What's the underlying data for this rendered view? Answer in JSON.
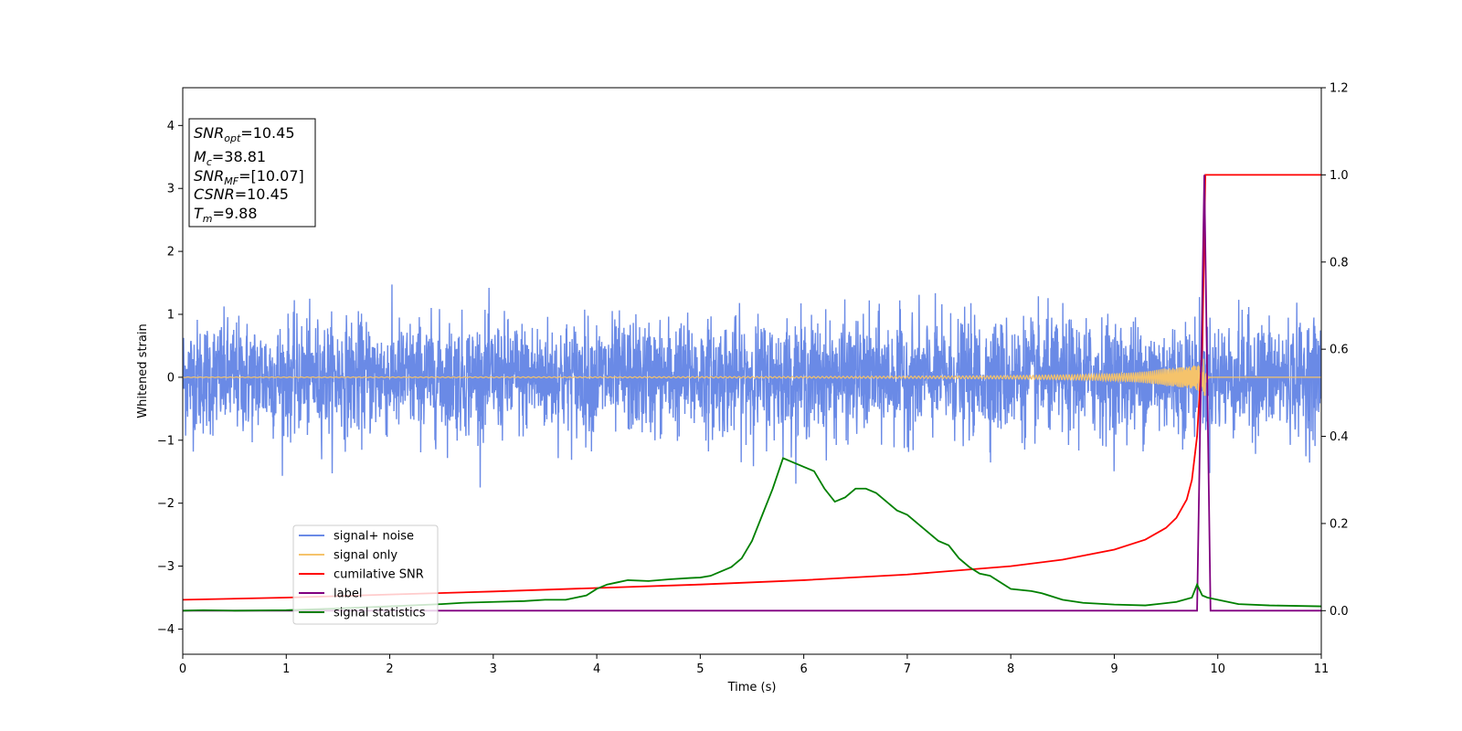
{
  "chart_data": {
    "type": "line",
    "title": "",
    "xlabel": "Time (s)",
    "ylabel": "Whitened strain",
    "y2label": "",
    "xlim": [
      0,
      11
    ],
    "ylim": [
      -4.4,
      4.6
    ],
    "y2lim": [
      -0.1,
      1.2
    ],
    "xticks": [
      0,
      1,
      2,
      3,
      4,
      5,
      6,
      7,
      8,
      9,
      10,
      11
    ],
    "yticks": [
      -4,
      -3,
      -2,
      -1,
      0,
      1,
      2,
      3,
      4
    ],
    "y2ticks": [
      0.0,
      0.2,
      0.4,
      0.6,
      0.8,
      1.0,
      1.2
    ],
    "xtick_labels": [
      "0",
      "1",
      "2",
      "3",
      "4",
      "5",
      "6",
      "7",
      "8",
      "9",
      "10",
      "11"
    ],
    "ytick_labels": [
      "−4",
      "−3",
      "−2",
      "−1",
      "0",
      "1",
      "2",
      "3",
      "4"
    ],
    "y2tick_labels": [
      "0.0",
      "0.2",
      "0.4",
      "0.6",
      "0.8",
      "1.0",
      "1.2"
    ],
    "grid": false,
    "legend_position": "lower-left",
    "annotation": [
      {
        "var": "SNR",
        "sub": "opt",
        "text": "=10.45"
      },
      {
        "var": "M",
        "sub": "c",
        "text": "=38.81"
      },
      {
        "var": "SNR",
        "sub": "MF",
        "text": "=[10.07]"
      },
      {
        "var": "CSNR",
        "sub": "",
        "text": "=10.45"
      },
      {
        "var": "T",
        "sub": "m",
        "text": "=9.88"
      }
    ],
    "series": [
      {
        "name": "signal+ noise",
        "color": "#6a8ae6",
        "axis": "left",
        "kind": "noise",
        "amplitude_std": 0.45,
        "peak_abs": 1.75,
        "duration_s": 11
      },
      {
        "name": "signal only",
        "color": "#f5c36b",
        "axis": "left",
        "kind": "chirp",
        "merger_time": 9.88,
        "peak_amplitude": 0.35
      },
      {
        "name": "cumilative SNR",
        "color": "#ff0000",
        "axis": "right",
        "x": [
          0,
          1,
          2,
          3,
          4,
          5,
          6,
          7,
          8,
          8.5,
          9,
          9.3,
          9.5,
          9.6,
          9.7,
          9.75,
          9.8,
          9.85,
          9.88,
          11
        ],
        "y": [
          0.025,
          0.03,
          0.037,
          0.044,
          0.052,
          0.06,
          0.07,
          0.083,
          0.102,
          0.117,
          0.14,
          0.163,
          0.19,
          0.213,
          0.255,
          0.3,
          0.4,
          0.6,
          1.0,
          1.0
        ]
      },
      {
        "name": "label",
        "color": "#800080",
        "axis": "right",
        "x": [
          0,
          9.8,
          9.87,
          9.93,
          11
        ],
        "y": [
          0,
          0,
          1.0,
          0,
          0
        ]
      },
      {
        "name": "signal statistics",
        "color": "#008000",
        "axis": "right",
        "x": [
          0,
          0.2,
          0.5,
          1.0,
          1.5,
          2.0,
          2.5,
          2.7,
          3.0,
          3.3,
          3.5,
          3.7,
          3.9,
          4.0,
          4.1,
          4.2,
          4.3,
          4.5,
          4.7,
          4.9,
          5.0,
          5.1,
          5.3,
          5.4,
          5.5,
          5.6,
          5.7,
          5.8,
          5.9,
          6.0,
          6.1,
          6.2,
          6.3,
          6.4,
          6.5,
          6.6,
          6.7,
          6.8,
          6.9,
          7.0,
          7.1,
          7.2,
          7.3,
          7.4,
          7.5,
          7.6,
          7.7,
          7.8,
          8.0,
          8.2,
          8.3,
          8.5,
          8.7,
          9.0,
          9.3,
          9.6,
          9.75,
          9.8,
          9.85,
          9.9,
          10.0,
          10.2,
          10.5,
          11.0
        ],
        "y": [
          0.0,
          0.001,
          0.0,
          0.001,
          0.005,
          0.01,
          0.015,
          0.018,
          0.02,
          0.022,
          0.025,
          0.025,
          0.035,
          0.05,
          0.06,
          0.065,
          0.07,
          0.068,
          0.072,
          0.075,
          0.076,
          0.08,
          0.1,
          0.12,
          0.16,
          0.22,
          0.28,
          0.35,
          0.34,
          0.33,
          0.32,
          0.28,
          0.25,
          0.26,
          0.28,
          0.28,
          0.27,
          0.25,
          0.23,
          0.22,
          0.2,
          0.18,
          0.16,
          0.15,
          0.12,
          0.1,
          0.085,
          0.08,
          0.05,
          0.045,
          0.04,
          0.025,
          0.018,
          0.014,
          0.012,
          0.02,
          0.03,
          0.06,
          0.035,
          0.03,
          0.025,
          0.015,
          0.012,
          0.01
        ]
      }
    ]
  }
}
